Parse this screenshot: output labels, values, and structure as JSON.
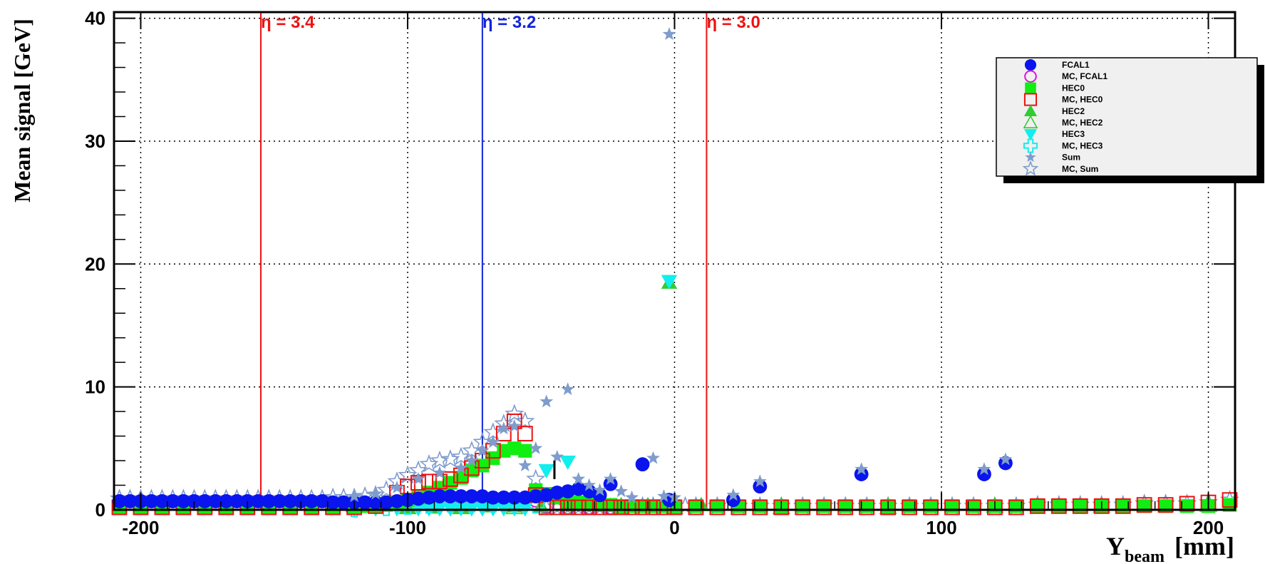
{
  "chart_data": {
    "type": "scatter",
    "title": "",
    "ylabel": "Mean signal [GeV]",
    "xlabel": {
      "main": "Y",
      "subscript": "beam",
      "unit": "[mm]"
    },
    "xlim": [
      -210,
      210
    ],
    "ylim": [
      0,
      40.5
    ],
    "x_ticks": [
      -200,
      -100,
      0,
      100,
      200
    ],
    "x_tick_labels": [
      "-200",
      "-100",
      "0",
      "100",
      "200"
    ],
    "y_ticks": [
      0,
      10,
      20,
      30,
      40
    ],
    "y_tick_labels": [
      "0",
      "10",
      "20",
      "30",
      "40"
    ],
    "grid": true,
    "legend_position": "top-right",
    "vlines": [
      {
        "x": -155,
        "label": "η = 3.4",
        "color": "#ee1111"
      },
      {
        "x": -72,
        "label": "η = 3.2",
        "color": "#1122dd"
      },
      {
        "x": 12,
        "label": "η = 3.0",
        "color": "#ee1111"
      }
    ],
    "series": [
      {
        "name": "FCAL1",
        "marker": "circle-filled",
        "color": "#0a14ee",
        "x": [
          -208,
          -204,
          -200,
          -196,
          -192,
          -188,
          -184,
          -180,
          -176,
          -172,
          -168,
          -164,
          -160,
          -156,
          -152,
          -148,
          -144,
          -140,
          -136,
          -132,
          -128,
          -124,
          -120,
          -116,
          -112,
          -108,
          -104,
          -100,
          -96,
          -92,
          -88,
          -84,
          -80,
          -76,
          -72,
          -68,
          -64,
          -60,
          -56,
          -52,
          -48,
          -44,
          -40,
          -36,
          -32,
          -28,
          -24,
          -12,
          -2,
          22,
          32,
          70,
          116,
          124
        ],
        "y": [
          0.7,
          0.7,
          0.7,
          0.7,
          0.7,
          0.7,
          0.7,
          0.7,
          0.7,
          0.7,
          0.7,
          0.7,
          0.7,
          0.7,
          0.7,
          0.7,
          0.7,
          0.7,
          0.7,
          0.7,
          0.6,
          0.6,
          0.6,
          0.6,
          0.6,
          0.6,
          0.7,
          0.8,
          0.9,
          1.0,
          1.1,
          1.1,
          1.1,
          1.1,
          1.1,
          1.0,
          1.0,
          1.0,
          1.0,
          1.1,
          1.2,
          1.4,
          1.5,
          1.7,
          1.5,
          1.2,
          2.1,
          3.7,
          0.8,
          0.8,
          1.9,
          2.9,
          2.9,
          3.8
        ]
      },
      {
        "name": "MC, FCAL1",
        "marker": "circle-open",
        "color": "#dd11dd",
        "x": [
          -208,
          -200,
          -192,
          -184,
          -176,
          -168,
          -160,
          -152,
          -144,
          -136,
          -128,
          -120,
          -112,
          -104,
          -96,
          -88,
          -80,
          -72,
          -64,
          -56,
          -52,
          -48,
          -40,
          -32,
          -24
        ],
        "y": [
          0.5,
          0.5,
          0.5,
          0.5,
          0.5,
          0.5,
          0.5,
          0.5,
          0.5,
          0.5,
          0.5,
          0.4,
          0.4,
          0.6,
          0.8,
          0.9,
          1.0,
          1.0,
          0.9,
          0.9,
          0.8,
          0.3,
          0.2,
          0.2,
          0.2
        ]
      },
      {
        "name": "HEC0",
        "marker": "square-filled",
        "color": "#11ee11",
        "x": [
          -208,
          -200,
          -192,
          -184,
          -176,
          -168,
          -160,
          -152,
          -144,
          -136,
          -128,
          -120,
          -116,
          -112,
          -108,
          -104,
          -100,
          -96,
          -92,
          -88,
          -84,
          -80,
          -76,
          -72,
          -68,
          -64,
          -60,
          -56,
          -52,
          -48,
          -44,
          -40,
          -36,
          -32,
          -28,
          -24,
          -20,
          -16,
          -12,
          -8,
          -4,
          0,
          8,
          16,
          24,
          32,
          40,
          48,
          56,
          64,
          72,
          80,
          88,
          96,
          104,
          112,
          120,
          128,
          136,
          144,
          152,
          160,
          168,
          176,
          184,
          192,
          200,
          208
        ],
        "y": [
          0.2,
          0.2,
          0.2,
          0.2,
          0.2,
          0.2,
          0.2,
          0.2,
          0.2,
          0.2,
          0.2,
          0.2,
          0.3,
          0.3,
          0.4,
          0.6,
          0.8,
          1.0,
          1.4,
          1.8,
          2.2,
          2.6,
          3.2,
          3.6,
          4.2,
          4.8,
          5.0,
          4.8,
          1.6,
          1.3,
          1.0,
          0.8,
          0.6,
          0.5,
          0.4,
          0.4,
          0.3,
          0.3,
          0.3,
          0.3,
          0.3,
          0.3,
          0.3,
          0.3,
          0.3,
          0.3,
          0.3,
          0.3,
          0.3,
          0.3,
          0.3,
          0.3,
          0.3,
          0.3,
          0.3,
          0.3,
          0.3,
          0.3,
          0.3,
          0.3,
          0.3,
          0.3,
          0.3,
          0.3,
          0.3,
          0.3,
          0.3,
          0.4
        ]
      },
      {
        "name": "MC, HEC0",
        "marker": "square-open",
        "color": "#ee1111",
        "x": [
          -208,
          -200,
          -192,
          -184,
          -176,
          -168,
          -160,
          -152,
          -144,
          -136,
          -128,
          -120,
          -112,
          -104,
          -100,
          -96,
          -92,
          -88,
          -84,
          -80,
          -76,
          -72,
          -68,
          -64,
          -60,
          -56,
          -52,
          -48,
          -44,
          -40,
          -36,
          -32,
          -28,
          -24,
          -20,
          -16,
          -12,
          -8,
          -4,
          0,
          8,
          16,
          24,
          32,
          40,
          48,
          56,
          64,
          72,
          80,
          88,
          96,
          104,
          112,
          120,
          128,
          136,
          144,
          152,
          160,
          168,
          176,
          184,
          192,
          200,
          208
        ],
        "y": [
          0.2,
          0.2,
          0.2,
          0.2,
          0.2,
          0.2,
          0.2,
          0.2,
          0.2,
          0.2,
          0.2,
          0.2,
          0.3,
          1.4,
          1.9,
          2.2,
          2.3,
          2.3,
          2.5,
          2.8,
          3.4,
          4.0,
          4.8,
          6.2,
          7.2,
          6.2,
          1.2,
          0.2,
          0.2,
          0.2,
          0.2,
          0.2,
          0.2,
          0.2,
          0.2,
          0.2,
          0.2,
          0.2,
          0.2,
          0.2,
          0.2,
          0.2,
          0.2,
          0.2,
          0.2,
          0.2,
          0.2,
          0.2,
          0.2,
          0.2,
          0.2,
          0.2,
          0.2,
          0.2,
          0.2,
          0.2,
          0.3,
          0.3,
          0.3,
          0.3,
          0.3,
          0.4,
          0.4,
          0.5,
          0.6,
          0.8
        ]
      },
      {
        "name": "HEC2",
        "marker": "triangle-up-filled",
        "color": "#33cc33",
        "x": [
          -100,
          -90,
          -80,
          -70,
          -60,
          -50,
          -40,
          -30,
          -20,
          -10,
          -2,
          10,
          40,
          80,
          120,
          160,
          200
        ],
        "y": [
          0.2,
          0.2,
          0.2,
          0.3,
          0.3,
          0.3,
          0.4,
          0.4,
          0.4,
          0.4,
          18.5,
          0.4,
          0.4,
          0.4,
          0.4,
          0.4,
          0.6
        ]
      },
      {
        "name": "MC, HEC2",
        "marker": "triangle-up-open",
        "color": "#33cc33",
        "x": [
          -100,
          -80,
          -60,
          -40,
          -20,
          0,
          40,
          80,
          120,
          160,
          200
        ],
        "y": [
          0.2,
          0.2,
          0.2,
          0.2,
          0.2,
          0.2,
          0.2,
          0.2,
          0.3,
          0.3,
          0.4
        ]
      },
      {
        "name": "HEC3",
        "marker": "triangle-down-filled",
        "color": "#11eeee",
        "x": [
          -120,
          -112,
          -104,
          -96,
          -92,
          -88,
          -84,
          -80,
          -76,
          -72,
          -68,
          -64,
          -60,
          -56,
          -48,
          -40,
          -2
        ],
        "y": [
          0.1,
          0.1,
          0.1,
          0.1,
          0.1,
          0.1,
          0.1,
          0.1,
          0.1,
          0.1,
          0.1,
          0.1,
          0.1,
          0.1,
          3.2,
          3.9,
          18.6
        ]
      },
      {
        "name": "MC, HEC3",
        "marker": "cross-open",
        "color": "#11eeee",
        "x": [
          -120,
          -108,
          -100,
          -92,
          -84,
          -76,
          -68,
          -60,
          -52
        ],
        "y": [
          0.1,
          0.2,
          0.3,
          0.4,
          0.5,
          0.5,
          0.5,
          0.5,
          0.4
        ]
      },
      {
        "name": "Sum",
        "marker": "star-filled",
        "color": "#7f9ccc",
        "x": [
          -120,
          -112,
          -104,
          -96,
          -88,
          -80,
          -76,
          -72,
          -68,
          -64,
          -60,
          -56,
          -52,
          -48,
          -44,
          -40,
          -36,
          -32,
          -28,
          -24,
          -20,
          -16,
          -8,
          -4,
          -2,
          0,
          22,
          32,
          70,
          116,
          124
        ],
        "y": [
          1.1,
          1.3,
          1.8,
          2.5,
          3.0,
          3.4,
          4.0,
          4.8,
          5.5,
          6.6,
          6.8,
          3.6,
          5.0,
          8.8,
          4.3,
          9.8,
          2.5,
          2.0,
          1.6,
          2.5,
          1.5,
          1.0,
          4.2,
          1.1,
          38.7,
          1.0,
          1.2,
          2.3,
          3.3,
          3.3,
          4.1
        ]
      },
      {
        "name": "MC, Sum",
        "marker": "star-open",
        "color": "#7f9ccc",
        "x": [
          -208,
          -204,
          -200,
          -196,
          -192,
          -188,
          -184,
          -180,
          -176,
          -172,
          -168,
          -164,
          -160,
          -156,
          -152,
          -148,
          -144,
          -140,
          -136,
          -132,
          -128,
          -124,
          -120,
          -116,
          -112,
          -108,
          -104,
          -100,
          -96,
          -92,
          -88,
          -84,
          -80,
          -76,
          -72,
          -68,
          -64,
          -60,
          -56,
          -52,
          -48,
          -44,
          -40,
          -36,
          -32,
          -28,
          -24,
          -20,
          -16,
          -12,
          -8,
          -4,
          0,
          4,
          8,
          16,
          24,
          32,
          40,
          48,
          56,
          64,
          72,
          80,
          88,
          96,
          104,
          112,
          120,
          128,
          136,
          144,
          152,
          160,
          168,
          176,
          184,
          192,
          200,
          208
        ],
        "y": [
          0.9,
          0.9,
          0.9,
          0.9,
          0.9,
          0.9,
          0.9,
          0.9,
          0.9,
          0.9,
          0.9,
          0.9,
          0.9,
          0.9,
          0.9,
          0.9,
          0.9,
          0.9,
          0.9,
          0.9,
          1.0,
          1.0,
          1.0,
          1.1,
          1.2,
          1.6,
          2.3,
          2.8,
          3.2,
          3.7,
          4.0,
          4.1,
          4.3,
          4.8,
          5.5,
          6.3,
          7.0,
          7.8,
          7.2,
          2.5,
          0.2,
          0.2,
          0.2,
          0.2,
          0.2,
          0.2,
          0.2,
          0.2,
          0.3,
          0.3,
          0.3,
          0.3,
          0.3,
          0.3,
          0.3,
          0.3,
          0.3,
          0.3,
          0.3,
          0.3,
          0.3,
          0.3,
          0.3,
          0.3,
          0.3,
          0.3,
          0.3,
          0.3,
          0.3,
          0.3,
          0.4,
          0.4,
          0.4,
          0.4,
          0.4,
          0.5,
          0.5,
          0.5,
          0.6,
          0.8
        ]
      }
    ]
  }
}
